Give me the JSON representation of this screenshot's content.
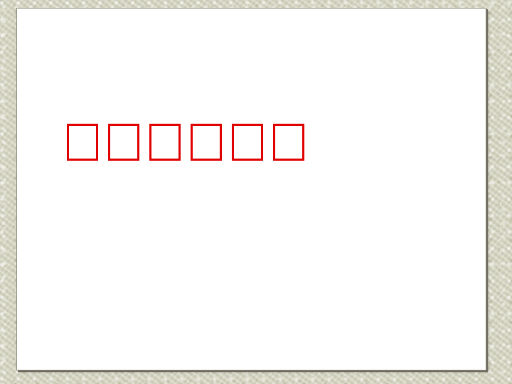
{
  "slide": {
    "title_glyph_count": 6,
    "title_color": "#e00000",
    "background_color": "#ffffff",
    "page_texture_color": "#d8d8c4"
  }
}
